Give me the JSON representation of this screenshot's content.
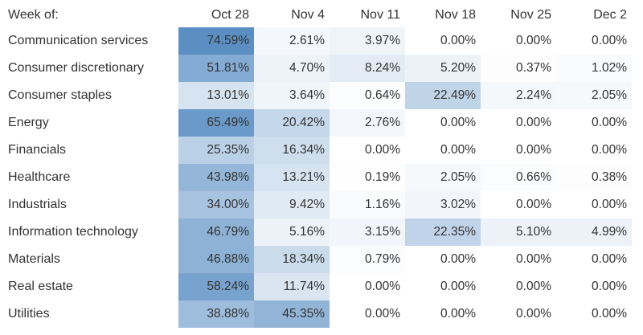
{
  "chart_data": {
    "type": "heatmap",
    "corner_label": "Week of:",
    "columns": [
      "Oct 28",
      "Nov 4",
      "Nov 11",
      "Nov 18",
      "Nov 25",
      "Dec 2"
    ],
    "rows": [
      "Communication services",
      "Consumer discretionary",
      "Consumer staples",
      "Energy",
      "Financials",
      "Healthcare",
      "Industrials",
      "Information technology",
      "Materials",
      "Real estate",
      "Utilities"
    ],
    "values": [
      [
        74.59,
        2.61,
        3.97,
        0.0,
        0.0,
        0.0
      ],
      [
        51.81,
        4.7,
        8.24,
        5.2,
        0.37,
        1.02
      ],
      [
        13.01,
        3.64,
        0.64,
        22.49,
        2.24,
        2.05
      ],
      [
        65.49,
        20.42,
        2.76,
        0.0,
        0.0,
        0.0
      ],
      [
        25.35,
        16.34,
        0.0,
        0.0,
        0.0,
        0.0
      ],
      [
        43.98,
        13.21,
        0.19,
        2.05,
        0.66,
        0.38
      ],
      [
        34.0,
        9.42,
        1.16,
        3.02,
        0.0,
        0.0
      ],
      [
        46.79,
        5.16,
        3.15,
        22.35,
        5.1,
        4.99
      ],
      [
        46.88,
        18.34,
        0.79,
        0.0,
        0.0,
        0.0
      ],
      [
        58.24,
        11.74,
        0.0,
        0.0,
        0.0,
        0.0
      ],
      [
        38.88,
        45.35,
        0.0,
        0.0,
        0.0,
        0.0
      ]
    ],
    "value_suffix": "%",
    "color_low": "#ffffff",
    "color_high": "#5b8fc4",
    "text_color": "#333333"
  }
}
